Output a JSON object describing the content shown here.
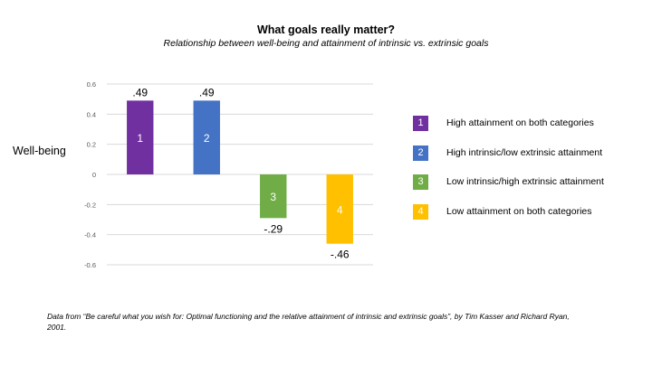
{
  "chart_data": {
    "type": "bar",
    "title": "What goals really matter?",
    "subtitle": "Relationship between well-being and attainment of intrinsic vs. extrinsic goals",
    "ylabel": "Well-being",
    "xlabel": "",
    "ylim": [
      -0.6,
      0.6
    ],
    "yticks": [
      0.6,
      0.4,
      0.2,
      0,
      -0.2,
      -0.4,
      -0.6
    ],
    "ytick_labels": [
      "0.6",
      "0.4",
      "0.2",
      "0",
      "-0.2",
      "-0.4",
      "-0.6"
    ],
    "grid": true,
    "legend_position": "right",
    "categories": [
      "1",
      "2",
      "3",
      "4"
    ],
    "values": [
      0.49,
      0.49,
      -0.29,
      -0.46
    ],
    "value_labels": [
      ".49",
      ".49",
      "-.29",
      "-.46"
    ],
    "colors": [
      "#7030a0",
      "#4472c4",
      "#70ad47",
      "#ffc000"
    ]
  },
  "legend": [
    {
      "number": "1",
      "label": "High attainment on both categories",
      "color": "#7030a0"
    },
    {
      "number": "2",
      "label": "High intrinsic/low extrinsic attainment",
      "color": "#4472c4"
    },
    {
      "number": "3",
      "label": "Low intrinsic/high extrinsic attainment",
      "color": "#70ad47"
    },
    {
      "number": "4",
      "label": "Low attainment on both categories",
      "color": "#ffc000"
    }
  ],
  "source_text": "Data from “Be careful what you wish for: Optimal functioning and the relative attainment of intrinsic and extrinsic goals”, by Tim Kasser and Richard Ryan, 2001."
}
